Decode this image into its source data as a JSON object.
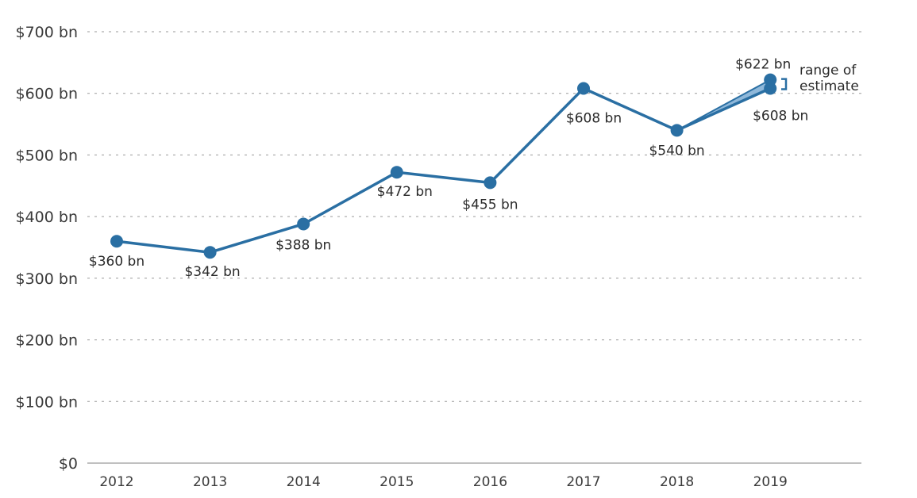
{
  "chart_data": {
    "type": "line",
    "title": "",
    "xlabel": "",
    "ylabel": "",
    "categories": [
      "2012",
      "2013",
      "2014",
      "2015",
      "2016",
      "2017",
      "2018",
      "2019"
    ],
    "series": [
      {
        "values": [
          360,
          342,
          388,
          472,
          455,
          608,
          540,
          608
        ]
      }
    ],
    "estimate_range": {
      "x": "2019",
      "low": 608,
      "high": 622,
      "note": "range of estimate"
    },
    "data_labels": [
      "$360 bn",
      "$342 bn",
      "$388 bn",
      "$472 bn",
      "$455 bn",
      "$608 bn",
      "$540 bn",
      "$608 bn"
    ],
    "high_label": "$622 bn",
    "note_lines": [
      "range of",
      "estimate"
    ],
    "y_ticks": [
      0,
      100,
      200,
      300,
      400,
      500,
      600,
      700
    ],
    "y_tick_labels": [
      "$0",
      "$100 bn",
      "$200 bn",
      "$300 bn",
      "$400 bn",
      "$500 bn",
      "$600 bn",
      "$700 bn"
    ],
    "ylim": [
      0,
      700
    ],
    "grid": true,
    "colors": {
      "line": "#2a6fa3",
      "range_fill": "#8fb8da",
      "grid": "#9a9a9a",
      "text": "#2b2b2b"
    }
  }
}
